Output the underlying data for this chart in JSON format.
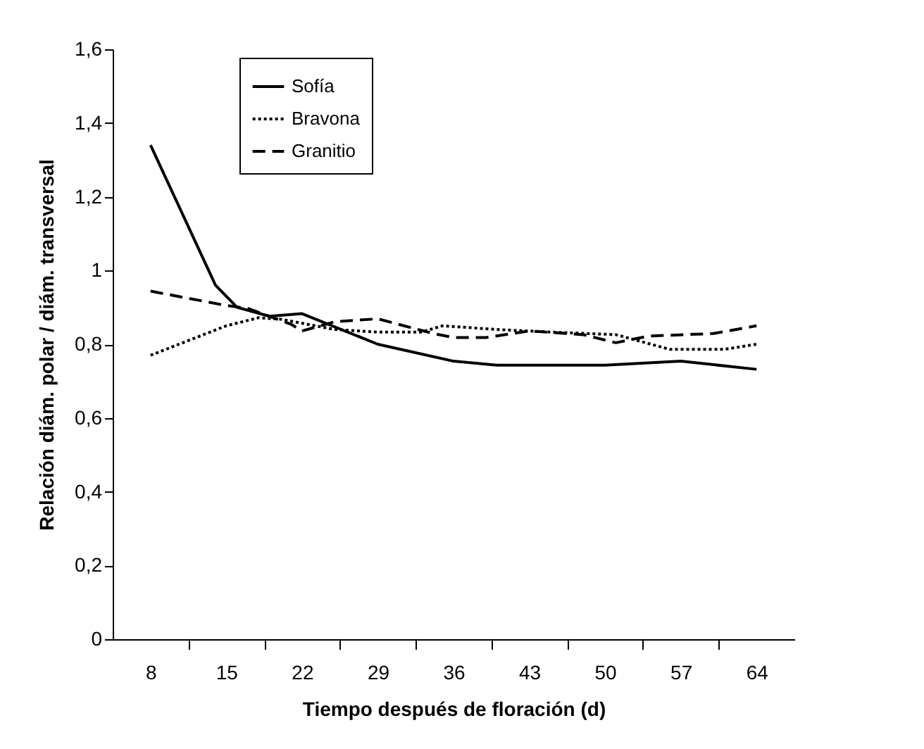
{
  "chart_data": {
    "type": "line",
    "xlabel": "Tiempo después de floración (d)",
    "ylabel": "Relación diám. polar / diám. transversal",
    "xlim": [
      4.5,
      67.5
    ],
    "xticks": [
      8,
      {
        "value": 11.5,
        "label": null
      },
      15,
      {
        "value": 18.5,
        "label": null
      },
      22,
      {
        "value": 25.5,
        "label": null
      },
      29,
      {
        "value": 32.5,
        "label": null
      },
      36,
      {
        "value": 39.5,
        "label": null
      },
      43,
      {
        "value": 46.5,
        "label": null
      },
      50,
      {
        "value": 53.5,
        "label": null
      },
      57,
      {
        "value": 60.5,
        "label": null
      },
      64
    ],
    "ylim": [
      0,
      1.6
    ],
    "yticks": [
      0,
      {
        "value": 0.2,
        "label": "0,2"
      },
      {
        "value": 0.4,
        "label": "0,4"
      },
      {
        "value": 0.6,
        "label": "0,6"
      },
      {
        "value": 0.8,
        "label": "0,8"
      },
      1,
      {
        "value": 1.2,
        "label": "1,2"
      },
      {
        "value": 1.4,
        "label": "1,4"
      },
      {
        "value": 1.6,
        "label": "1,6"
      }
    ],
    "grid": false,
    "legend": "top left",
    "marker": "none",
    "series": [
      {
        "name": "Sofía",
        "color": "#000000",
        "line_style": "solid",
        "x": [
          8,
          14,
          16,
          19,
          22,
          29,
          36,
          40,
          50,
          57,
          64
        ],
        "values": [
          1.34,
          0.96,
          0.9,
          0.876,
          0.883,
          0.8,
          0.754,
          0.743,
          0.743,
          0.754,
          0.732
        ]
      },
      {
        "name": "Bravona",
        "color": "#000000",
        "line_style": "dotted",
        "x": [
          8,
          15,
          18,
          20,
          25,
          29,
          33,
          35,
          40,
          45,
          51,
          56,
          61,
          64
        ],
        "values": [
          0.77,
          0.85,
          0.872,
          0.868,
          0.84,
          0.833,
          0.833,
          0.85,
          0.84,
          0.833,
          0.826,
          0.786,
          0.786,
          0.8
        ]
      },
      {
        "name": "Granitio",
        "color": "#000000",
        "line_style": "dashed",
        "x": [
          8,
          15,
          17,
          21,
          22,
          25,
          29,
          34,
          36,
          39,
          43,
          48,
          51,
          54,
          60,
          64
        ],
        "values": [
          0.944,
          0.905,
          0.897,
          0.854,
          0.836,
          0.861,
          0.869,
          0.83,
          0.818,
          0.818,
          0.836,
          0.826,
          0.804,
          0.822,
          0.829,
          0.85
        ]
      }
    ]
  }
}
